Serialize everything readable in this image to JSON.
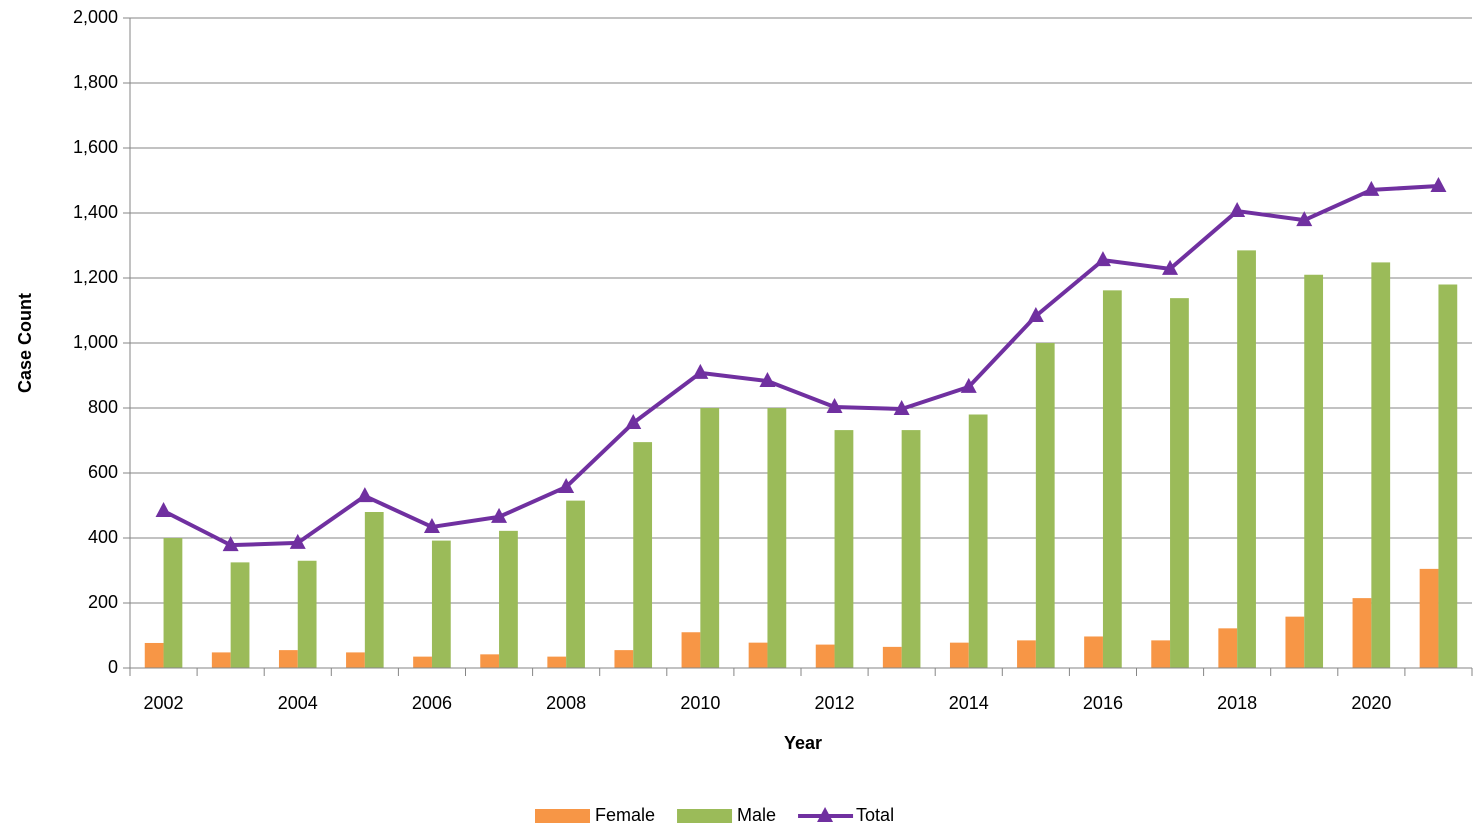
{
  "chart_data": {
    "type": "bar",
    "xlabel": "Year",
    "ylabel": "Case Count",
    "categories": [
      "2002",
      null,
      "2004",
      null,
      "2006",
      null,
      "2008",
      null,
      "2010",
      null,
      "2012",
      null,
      "2014",
      null,
      "2016",
      null,
      "2018",
      null,
      "2020",
      null
    ],
    "series": [
      {
        "name": "Female",
        "color": "#f79646",
        "type": "bar",
        "values": [
          77,
          48,
          55,
          48,
          35,
          42,
          35,
          55,
          110,
          78,
          72,
          65,
          78,
          85,
          97,
          85,
          122,
          158,
          215,
          305
        ]
      },
      {
        "name": "Male",
        "color": "#9bbb59",
        "type": "bar",
        "values": [
          400,
          325,
          330,
          480,
          392,
          422,
          515,
          695,
          800,
          800,
          732,
          732,
          780,
          1000,
          1162,
          1138,
          1285,
          1210,
          1248,
          1180
        ]
      },
      {
        "name": "Total",
        "color": "#7030a0",
        "type": "line",
        "values": [
          483,
          378,
          385,
          529,
          434,
          465,
          557,
          754,
          908,
          883,
          803,
          797,
          865,
          1083,
          1255,
          1228,
          1406,
          1378,
          1471,
          1483
        ]
      }
    ],
    "ylim": [
      0,
      2000
    ],
    "yticks": [
      0,
      200,
      400,
      600,
      800,
      {
        "value": 1000,
        "label": "1,000"
      },
      {
        "value": 1200,
        "label": "1,200"
      },
      {
        "value": 1400,
        "label": "1,400"
      },
      {
        "value": 1600,
        "label": "1,600"
      },
      {
        "value": 1800,
        "label": "1,800"
      },
      {
        "value": 2000,
        "label": "2,000"
      }
    ],
    "grid": true,
    "legend": "bottom"
  }
}
